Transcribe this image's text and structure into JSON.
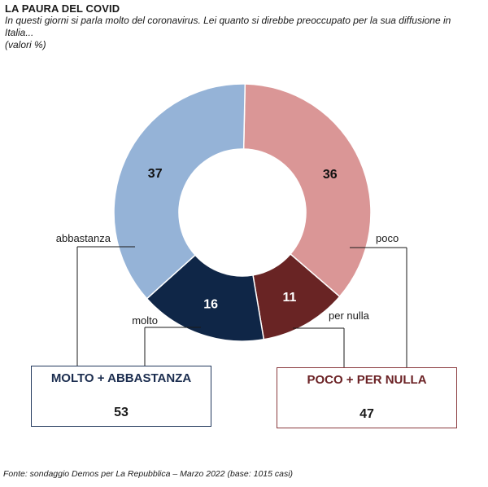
{
  "header": {
    "title": "LA PAURA DEL COVID",
    "subtitle": "In questi giorni si parla molto del coronavirus. Lei quanto si direbbe preoccupato per la sua diffusione in Italia...",
    "note": "(valori %)"
  },
  "chart_data": {
    "type": "pie",
    "title": "LA PAURA DEL COVID",
    "variant": "donut",
    "slices": [
      {
        "label": "poco",
        "value": 36,
        "color": "#da9696"
      },
      {
        "label": "per nulla",
        "value": 11,
        "color": "#692424"
      },
      {
        "label": "molto",
        "value": 16,
        "color": "#0f2647"
      },
      {
        "label": "abbastanza",
        "value": 37,
        "color": "#95b3d7"
      }
    ],
    "groups": [
      {
        "label": "MOLTO + ABBASTANZA",
        "value": 53
      },
      {
        "label": "POCO + PER NULLA",
        "value": 47
      }
    ]
  },
  "footer": {
    "source": "Fonte: sondaggio Demos per La Repubblica – Marzo 2022 (base: 1015 casi)"
  }
}
